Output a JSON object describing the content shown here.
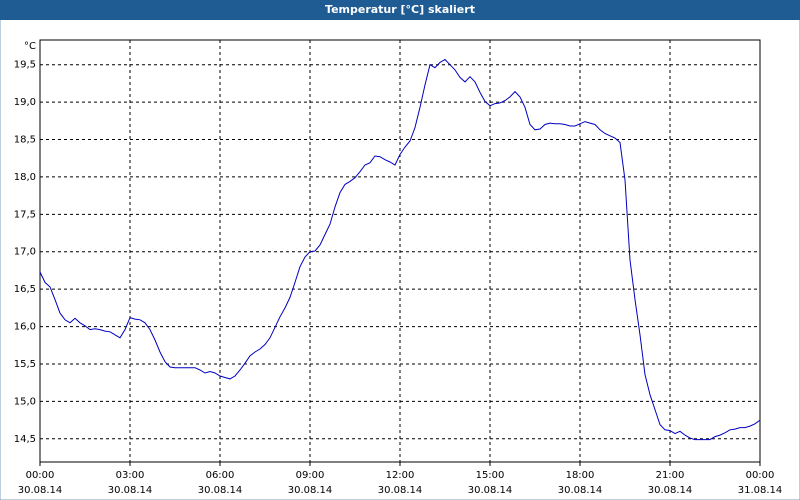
{
  "chart_data": {
    "type": "line",
    "title": "Temperatur [°C] skaliert",
    "y_unit": "°C",
    "x_unit": "minutes",
    "x": [
      0,
      10,
      20,
      30,
      40,
      50,
      60,
      70,
      80,
      90,
      100,
      110,
      120,
      130,
      140,
      150,
      160,
      170,
      180,
      190,
      200,
      210,
      220,
      230,
      240,
      250,
      260,
      270,
      280,
      290,
      300,
      310,
      320,
      330,
      340,
      350,
      360,
      370,
      380,
      390,
      400,
      410,
      420,
      430,
      440,
      450,
      460,
      470,
      480,
      490,
      500,
      510,
      520,
      530,
      540,
      550,
      560,
      570,
      580,
      590,
      600,
      610,
      620,
      630,
      640,
      650,
      660,
      670,
      680,
      690,
      700,
      710,
      720,
      730,
      740,
      750,
      760,
      770,
      780,
      790,
      800,
      810,
      820,
      830,
      840,
      850,
      860,
      870,
      880,
      890,
      900,
      910,
      920,
      930,
      940,
      950,
      960,
      970,
      980,
      990,
      1000,
      1010,
      1020,
      1030,
      1040,
      1050,
      1060,
      1070,
      1080,
      1090,
      1100,
      1110,
      1120,
      1130,
      1140,
      1150,
      1160,
      1170,
      1180,
      1190,
      1200,
      1210,
      1220,
      1230,
      1240,
      1250,
      1260,
      1270,
      1280,
      1290,
      1300,
      1310,
      1320,
      1330,
      1340,
      1350,
      1360,
      1370,
      1380,
      1390,
      1400,
      1410,
      1420,
      1430,
      1440
    ],
    "series": [
      {
        "name": "Temperatur",
        "color": "#0000c0",
        "values": [
          16.73,
          16.59,
          16.53,
          16.36,
          16.18,
          16.09,
          16.05,
          16.11,
          16.05,
          16.01,
          15.96,
          15.97,
          15.96,
          15.94,
          15.93,
          15.89,
          15.85,
          15.96,
          16.12,
          16.1,
          16.09,
          16.05,
          15.96,
          15.82,
          15.66,
          15.53,
          15.46,
          15.45,
          15.45,
          15.45,
          15.45,
          15.45,
          15.42,
          15.38,
          15.4,
          15.38,
          15.34,
          15.32,
          15.3,
          15.34,
          15.42,
          15.51,
          15.61,
          15.66,
          15.7,
          15.76,
          15.85,
          15.99,
          16.13,
          16.25,
          16.39,
          16.59,
          16.8,
          16.93,
          17.0,
          17.01,
          17.09,
          17.23,
          17.37,
          17.6,
          17.79,
          17.9,
          17.94,
          17.99,
          18.07,
          18.16,
          18.19,
          18.28,
          18.27,
          18.23,
          18.2,
          18.16,
          18.3,
          18.4,
          18.48,
          18.66,
          18.93,
          19.23,
          19.5,
          19.46,
          19.53,
          19.57,
          19.5,
          19.43,
          19.33,
          19.27,
          19.34,
          19.27,
          19.13,
          19.01,
          18.95,
          18.98,
          18.99,
          19.02,
          19.07,
          19.14,
          19.07,
          18.93,
          18.7,
          18.63,
          18.64,
          18.7,
          18.72,
          18.71,
          18.71,
          18.7,
          18.68,
          18.68,
          18.71,
          18.74,
          18.72,
          18.7,
          18.63,
          18.58,
          18.55,
          18.52,
          18.46,
          17.96,
          16.89,
          16.36,
          15.89,
          15.36,
          15.09,
          14.89,
          14.69,
          14.62,
          14.61,
          14.57,
          14.6,
          14.55,
          14.51,
          14.49,
          14.49,
          14.49,
          14.49,
          14.53,
          14.55,
          14.58,
          14.62,
          14.63,
          14.65,
          14.65,
          14.67,
          14.7,
          14.75
        ]
      }
    ],
    "xlim": [
      0,
      1440
    ],
    "xticks": [
      {
        "value": 0,
        "label": "00:00",
        "date": "30.08.14"
      },
      {
        "value": 180,
        "label": "03:00",
        "date": "30.08.14"
      },
      {
        "value": 360,
        "label": "06:00",
        "date": "30.08.14"
      },
      {
        "value": 540,
        "label": "09:00",
        "date": "30.08.14"
      },
      {
        "value": 720,
        "label": "12:00",
        "date": "30.08.14"
      },
      {
        "value": 900,
        "label": "15:00",
        "date": "30.08.14"
      },
      {
        "value": 1080,
        "label": "18:00",
        "date": "30.08.14"
      },
      {
        "value": 1260,
        "label": "21:00",
        "date": "30.08.14"
      },
      {
        "value": 1440,
        "label": "00:00",
        "date": "31.08.14"
      }
    ],
    "ylim": [
      14.19,
      19.83
    ],
    "yticks": [
      {
        "value": 14.5,
        "label": "14,5"
      },
      {
        "value": 15,
        "label": "15,0"
      },
      {
        "value": 15.5,
        "label": "15,5"
      },
      {
        "value": 16,
        "label": "16,0"
      },
      {
        "value": 16.5,
        "label": "16,5"
      },
      {
        "value": 17,
        "label": "17,0"
      },
      {
        "value": 17.5,
        "label": "17,5"
      },
      {
        "value": 18,
        "label": "18,0"
      },
      {
        "value": 18.5,
        "label": "18,5"
      },
      {
        "value": 19,
        "label": "19,0"
      },
      {
        "value": 19.5,
        "label": "19,5"
      }
    ],
    "grid": true
  }
}
